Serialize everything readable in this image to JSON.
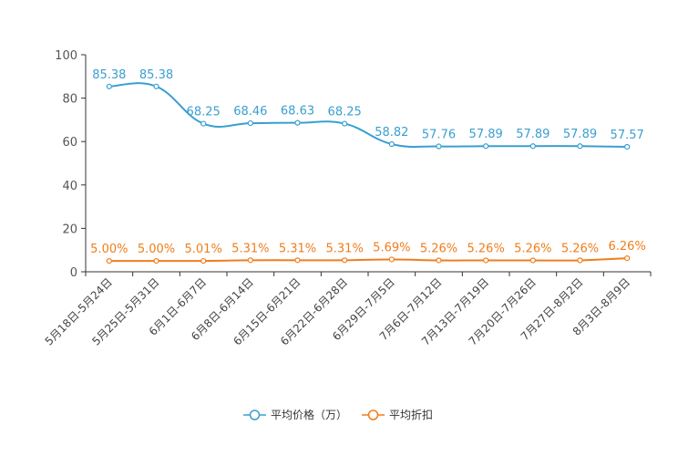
{
  "chart_data": {
    "type": "line",
    "title": "",
    "xlabel": "",
    "ylabel": "",
    "ylim": [
      0,
      100
    ],
    "yticks": [
      0,
      20,
      40,
      60,
      80,
      100
    ],
    "grid": false,
    "legend_position": "bottom-center",
    "categories": [
      "5月18日-5月24日",
      "5月25日-5月31日",
      "6月1日-6月7日",
      "6月8日-6月14日",
      "6月15日-6月21日",
      "6月22日-6月28日",
      "6月29日-7月5日",
      "7月6日-7月12日",
      "7月13日-7月19日",
      "7月20日-7月26日",
      "7月27日-8月2日",
      "8月3日-8月9日"
    ],
    "series": [
      {
        "name": "平均价格（万）",
        "color": "#3a9fd0",
        "values": [
          85.38,
          85.38,
          68.25,
          68.46,
          68.63,
          68.25,
          58.82,
          57.76,
          57.89,
          57.89,
          57.89,
          57.57
        ],
        "labels": [
          "85.38",
          "85.38",
          "68.25",
          "68.46",
          "68.63",
          "68.25",
          "58.82",
          "57.76",
          "57.89",
          "57.89",
          "57.89",
          "57.57"
        ]
      },
      {
        "name": "平均折扣",
        "color": "#f07d1b",
        "values": [
          5.0,
          5.0,
          5.01,
          5.31,
          5.31,
          5.31,
          5.69,
          5.26,
          5.26,
          5.26,
          5.26,
          6.26
        ],
        "labels": [
          "5.00%",
          "5.00%",
          "5.01%",
          "5.31%",
          "5.31%",
          "5.31%",
          "5.69%",
          "5.26%",
          "5.26%",
          "5.26%",
          "5.26%",
          "6.26%"
        ]
      }
    ]
  }
}
